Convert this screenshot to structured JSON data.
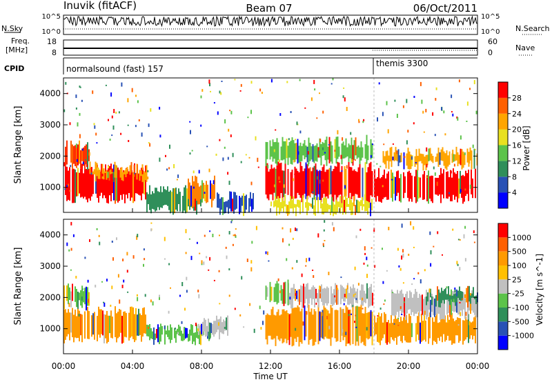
{
  "header": {
    "station": "Inuvik (fitACF)",
    "beam": "Beam 07",
    "date": "06/Oct/2011"
  },
  "noise_panel": {
    "left_label": "N.Sky",
    "right_label": "N.Search",
    "left_ticks": [
      "10^5",
      "10^0"
    ],
    "right_ticks": [
      "10^5",
      "10^0"
    ]
  },
  "freq_panel": {
    "left_label_1": "Freq.",
    "left_label_2": "[MHz]",
    "right_label": "Nave",
    "left_ticks": [
      "18",
      "8"
    ],
    "right_ticks": [
      "60",
      "0"
    ]
  },
  "cpid_panel": {
    "label": "CPID",
    "modes": [
      {
        "name": "normalsound (fast) 157",
        "start_hour": 0
      },
      {
        "name": "themis 3300",
        "start_hour": 18
      }
    ]
  },
  "time_axis": {
    "label": "Time UT",
    "ticks": [
      "00:00",
      "04:00",
      "08:00",
      "12:00",
      "16:00",
      "20:00",
      "00:00"
    ],
    "range_hours": [
      0,
      24
    ]
  },
  "chart_data": [
    {
      "type": "heatmap",
      "name": "power",
      "ylabel": "Slant Range [km]",
      "yticks": [
        "1000",
        "2000",
        "3000",
        "4000"
      ],
      "ylim": [
        200,
        4500
      ],
      "xlim_hours": [
        0,
        24
      ],
      "colorbar": {
        "label": "Power [dB]",
        "ticks": [
          "4",
          "8",
          "12",
          "16",
          "20",
          "24",
          "28"
        ],
        "colors": [
          "#0000ff",
          "#2851b5",
          "#2f8f5a",
          "#5cc34a",
          "#e8e020",
          "#ffa500",
          "#ff6000",
          "#ff0000"
        ]
      },
      "regions": [
        {
          "t": [
            0.0,
            4.8
          ],
          "r": [
            650,
            1600
          ],
          "color": "#ff0000"
        },
        {
          "t": [
            0.0,
            1.5
          ],
          "r": [
            1700,
            2350
          ],
          "color": "#ff3000"
        },
        {
          "t": [
            1.5,
            4.8
          ],
          "r": [
            1300,
            1650
          ],
          "color": "#ffa500"
        },
        {
          "t": [
            4.8,
            8.0
          ],
          "r": [
            300,
            900
          ],
          "color": "#2f8f5a"
        },
        {
          "t": [
            7.2,
            8.8
          ],
          "r": [
            500,
            1200
          ],
          "color": "#ff8000"
        },
        {
          "t": [
            8.8,
            11.0
          ],
          "r": [
            250,
            700
          ],
          "color": "#2851b5"
        },
        {
          "t": [
            11.7,
            17.9
          ],
          "r": [
            650,
            1650
          ],
          "color": "#ff0000"
        },
        {
          "t": [
            11.7,
            17.9
          ],
          "r": [
            1850,
            2450
          ],
          "color": "#5cc34a"
        },
        {
          "t": [
            12.0,
            17.9
          ],
          "r": [
            250,
            600
          ],
          "color": "#e8e020"
        },
        {
          "t": [
            18.0,
            24.0
          ],
          "r": [
            650,
            1450
          ],
          "color": "#ff0000"
        },
        {
          "t": [
            18.5,
            24.0
          ],
          "r": [
            1700,
            2150
          ],
          "color": "#ffa500"
        }
      ]
    },
    {
      "type": "heatmap",
      "name": "velocity",
      "ylabel": "Slant Range [km]",
      "yticks": [
        "1000",
        "2000",
        "3000",
        "4000"
      ],
      "ylim": [
        200,
        4500
      ],
      "xlim_hours": [
        0,
        24
      ],
      "colorbar": {
        "label": "Velocity [m s^-1]",
        "ticks": [
          "1000",
          "500",
          "100",
          "25",
          "-25",
          "-100",
          "-500",
          "-1000"
        ],
        "colors": [
          "#ff0000",
          "#ff6000",
          "#ff9a00",
          "#ffc000",
          "#c0c0c0",
          "#5cc34a",
          "#2f8f5a",
          "#2851b5",
          "#0000ff"
        ]
      },
      "regions": [
        {
          "t": [
            0.0,
            4.8
          ],
          "r": [
            700,
            1550
          ],
          "color": "#ff9a00"
        },
        {
          "t": [
            0.0,
            1.5
          ],
          "r": [
            1750,
            2300
          ],
          "color": "#5cc34a"
        },
        {
          "t": [
            4.8,
            8.5
          ],
          "r": [
            650,
            1000
          ],
          "color": "#5cc34a"
        },
        {
          "t": [
            7.8,
            9.5
          ],
          "r": [
            800,
            1250
          ],
          "color": "#c0c0c0"
        },
        {
          "t": [
            11.7,
            17.9
          ],
          "r": [
            600,
            1600
          ],
          "color": "#ff9a00"
        },
        {
          "t": [
            13.0,
            17.9
          ],
          "r": [
            1800,
            2300
          ],
          "color": "#c0c0c0"
        },
        {
          "t": [
            11.7,
            13.0
          ],
          "r": [
            1900,
            2400
          ],
          "color": "#5cc34a"
        },
        {
          "t": [
            18.0,
            24.0
          ],
          "r": [
            650,
            1350
          ],
          "color": "#ff9a00"
        },
        {
          "t": [
            19.0,
            24.0
          ],
          "r": [
            1450,
            2100
          ],
          "color": "#c0c0c0"
        },
        {
          "t": [
            21.0,
            24.0
          ],
          "r": [
            1850,
            2200
          ],
          "color": "#2f8f5a"
        }
      ]
    }
  ]
}
